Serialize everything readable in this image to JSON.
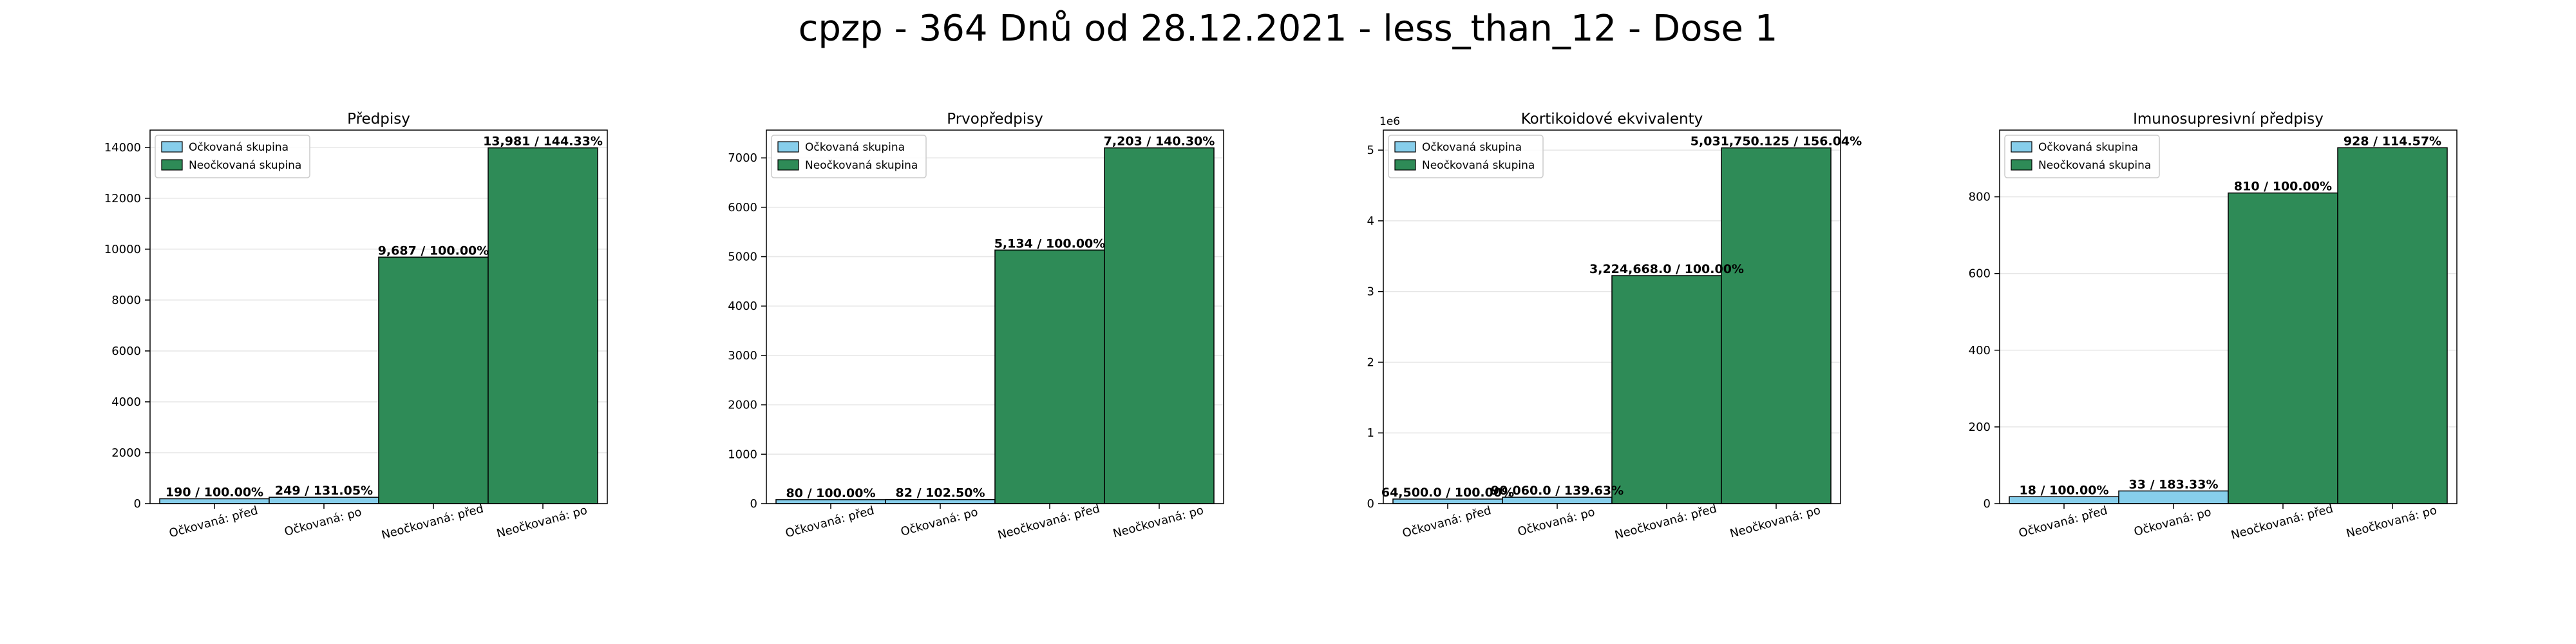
{
  "figure_title": "cpzp - 364 Dnů od 28.12.2021 - less_than_12 - Dose 1",
  "colors": {
    "vaccinated": "#87ceeb",
    "unvaccinated": "#2e8b57",
    "edge": "#000000",
    "grid": "#e6e6e6"
  },
  "chart_data": [
    {
      "type": "bar",
      "title": "Předpisy",
      "categories": [
        "Očkovaná: před",
        "Očkovaná: po",
        "Neočkovaná: před",
        "Neočkovaná: po"
      ],
      "values": [
        190,
        249,
        9687,
        13981
      ],
      "groups": [
        "vaccinated",
        "vaccinated",
        "unvaccinated",
        "unvaccinated"
      ],
      "bar_labels": [
        "190 / 100.00%",
        "249 / 131.05%",
        "9,687 / 100.00%",
        "13,981 / 144.33%"
      ],
      "legend": [
        "Očkovaná skupina",
        "Neočkovaná skupina"
      ],
      "legend_position": "top-left",
      "ylim": [
        0,
        14680
      ],
      "yticks": [
        0,
        2000,
        4000,
        6000,
        8000,
        10000,
        12000,
        14000
      ],
      "ytick_labels": [
        "0",
        "2000",
        "4000",
        "6000",
        "8000",
        "10000",
        "12000",
        "14000"
      ],
      "y_offset_label": "",
      "grid": true
    },
    {
      "type": "bar",
      "title": "Prvopředpisy",
      "categories": [
        "Očkovaná: před",
        "Očkovaná: po",
        "Neočkovaná: před",
        "Neočkovaná: po"
      ],
      "values": [
        80,
        82,
        5134,
        7203
      ],
      "groups": [
        "vaccinated",
        "vaccinated",
        "unvaccinated",
        "unvaccinated"
      ],
      "bar_labels": [
        "80 / 100.00%",
        "82 / 102.50%",
        "5,134 / 100.00%",
        "7,203 / 140.30%"
      ],
      "legend": [
        "Očkovaná skupina",
        "Neočkovaná skupina"
      ],
      "legend_position": "top-left",
      "ylim": [
        0,
        7563
      ],
      "yticks": [
        0,
        1000,
        2000,
        3000,
        4000,
        5000,
        6000,
        7000
      ],
      "ytick_labels": [
        "0",
        "1000",
        "2000",
        "3000",
        "4000",
        "5000",
        "6000",
        "7000"
      ],
      "y_offset_label": "",
      "grid": true
    },
    {
      "type": "bar",
      "title": "Kortikoidové ekvivalenty",
      "categories": [
        "Očkovaná: před",
        "Očkovaná: po",
        "Neočkovaná: před",
        "Neočkovaná: po"
      ],
      "values": [
        64500,
        90060,
        3224668,
        5031750.125
      ],
      "groups": [
        "vaccinated",
        "vaccinated",
        "unvaccinated",
        "unvaccinated"
      ],
      "bar_labels": [
        "64,500.0 / 100.00%",
        "90,060.0 / 139.63%",
        "3,224,668.0 / 100.00%",
        "5,031,750.125 / 156.04%"
      ],
      "legend": [
        "Očkovaná skupina",
        "Neočkovaná skupina"
      ],
      "legend_position": "top-left",
      "ylim": [
        0,
        5283337
      ],
      "yticks": [
        0,
        1000000,
        2000000,
        3000000,
        4000000,
        5000000
      ],
      "ytick_labels": [
        "0",
        "1",
        "2",
        "3",
        "4",
        "5"
      ],
      "y_offset_label": "1e6",
      "grid": true
    },
    {
      "type": "bar",
      "title": "Imunosupresivní předpisy",
      "categories": [
        "Očkovaná: před",
        "Očkovaná: po",
        "Neočkovaná: před",
        "Neočkovaná: po"
      ],
      "values": [
        18,
        33,
        810,
        928
      ],
      "groups": [
        "vaccinated",
        "vaccinated",
        "unvaccinated",
        "unvaccinated"
      ],
      "bar_labels": [
        "18 / 100.00%",
        "33 / 183.33%",
        "810 / 100.00%",
        "928 / 114.57%"
      ],
      "legend": [
        "Očkovaná skupina",
        "Neočkovaná skupina"
      ],
      "legend_position": "top-left",
      "ylim": [
        0,
        974
      ],
      "yticks": [
        0,
        200,
        400,
        600,
        800
      ],
      "ytick_labels": [
        "0",
        "200",
        "400",
        "600",
        "800"
      ],
      "y_offset_label": "",
      "grid": true
    }
  ]
}
